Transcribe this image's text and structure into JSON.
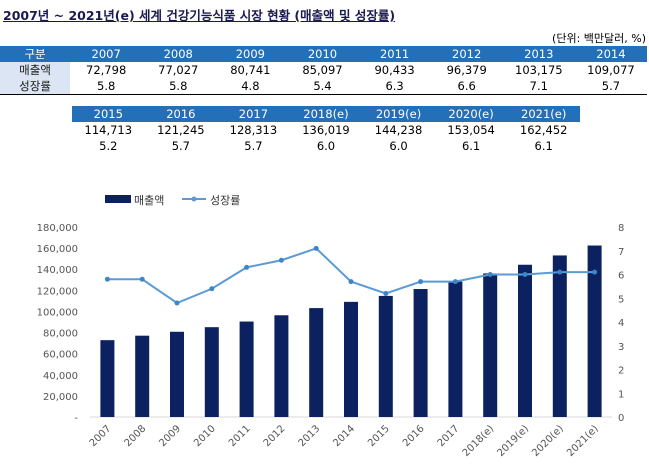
{
  "title": "2007년 ~ 2021년(e) 세계 건강기능식품 시장 현황 (매출액 및 성장률)",
  "unit": "(단위: 백만달러, %)",
  "table": {
    "header_label": "구분",
    "row1_label": "매출액",
    "row2_label": "성장률",
    "part1": {
      "years": [
        "2007",
        "2008",
        "2009",
        "2010",
        "2011",
        "2012",
        "2013",
        "2014"
      ],
      "sales": [
        "72,798",
        "77,027",
        "80,741",
        "85,097",
        "90,433",
        "96,379",
        "103,175",
        "109,077"
      ],
      "growth": [
        "5.8",
        "5.8",
        "4.8",
        "5.4",
        "6.3",
        "6.6",
        "7.1",
        "5.7"
      ]
    },
    "part2": {
      "years": [
        "2015",
        "2016",
        "2017",
        "2018(e)",
        "2019(e)",
        "2020(e)",
        "2021(e)"
      ],
      "sales": [
        "114,713",
        "121,245",
        "128,313",
        "136,019",
        "144,238",
        "153,054",
        "162,452"
      ],
      "growth": [
        "5.2",
        "5.7",
        "5.7",
        "6.0",
        "6.0",
        "6.1",
        "6.1"
      ]
    }
  },
  "chart_data": {
    "type": "bar+line",
    "categories": [
      "2007",
      "2008",
      "2009",
      "2010",
      "2011",
      "2012",
      "2013",
      "2014",
      "2015",
      "2016",
      "2017",
      "2018(e)",
      "2019(e)",
      "2020(e)",
      "2021(e)"
    ],
    "series": [
      {
        "name": "매출액",
        "type": "bar",
        "axis": "left",
        "color": "#0c2260",
        "values": [
          72798,
          77027,
          80741,
          85097,
          90433,
          96379,
          103175,
          109077,
          114713,
          121245,
          128313,
          136019,
          144238,
          153054,
          162452
        ]
      },
      {
        "name": "성장률",
        "type": "line",
        "axis": "right",
        "color": "#5b9bd5",
        "values": [
          5.8,
          5.8,
          4.8,
          5.4,
          6.3,
          6.6,
          7.1,
          5.7,
          5.2,
          5.7,
          5.7,
          6.0,
          6.0,
          6.1,
          6.1
        ]
      }
    ],
    "left_axis": {
      "ylim": [
        0,
        180000
      ],
      "ticks": [
        "-",
        "20,000",
        "40,000",
        "60,000",
        "80,000",
        "100,000",
        "120,000",
        "140,000",
        "160,000",
        "180,000"
      ]
    },
    "right_axis": {
      "ylim": [
        0,
        8
      ],
      "ticks": [
        "0",
        "1",
        "2",
        "3",
        "4",
        "5",
        "6",
        "7",
        "8"
      ]
    },
    "legend": "top-left",
    "grid": false
  }
}
